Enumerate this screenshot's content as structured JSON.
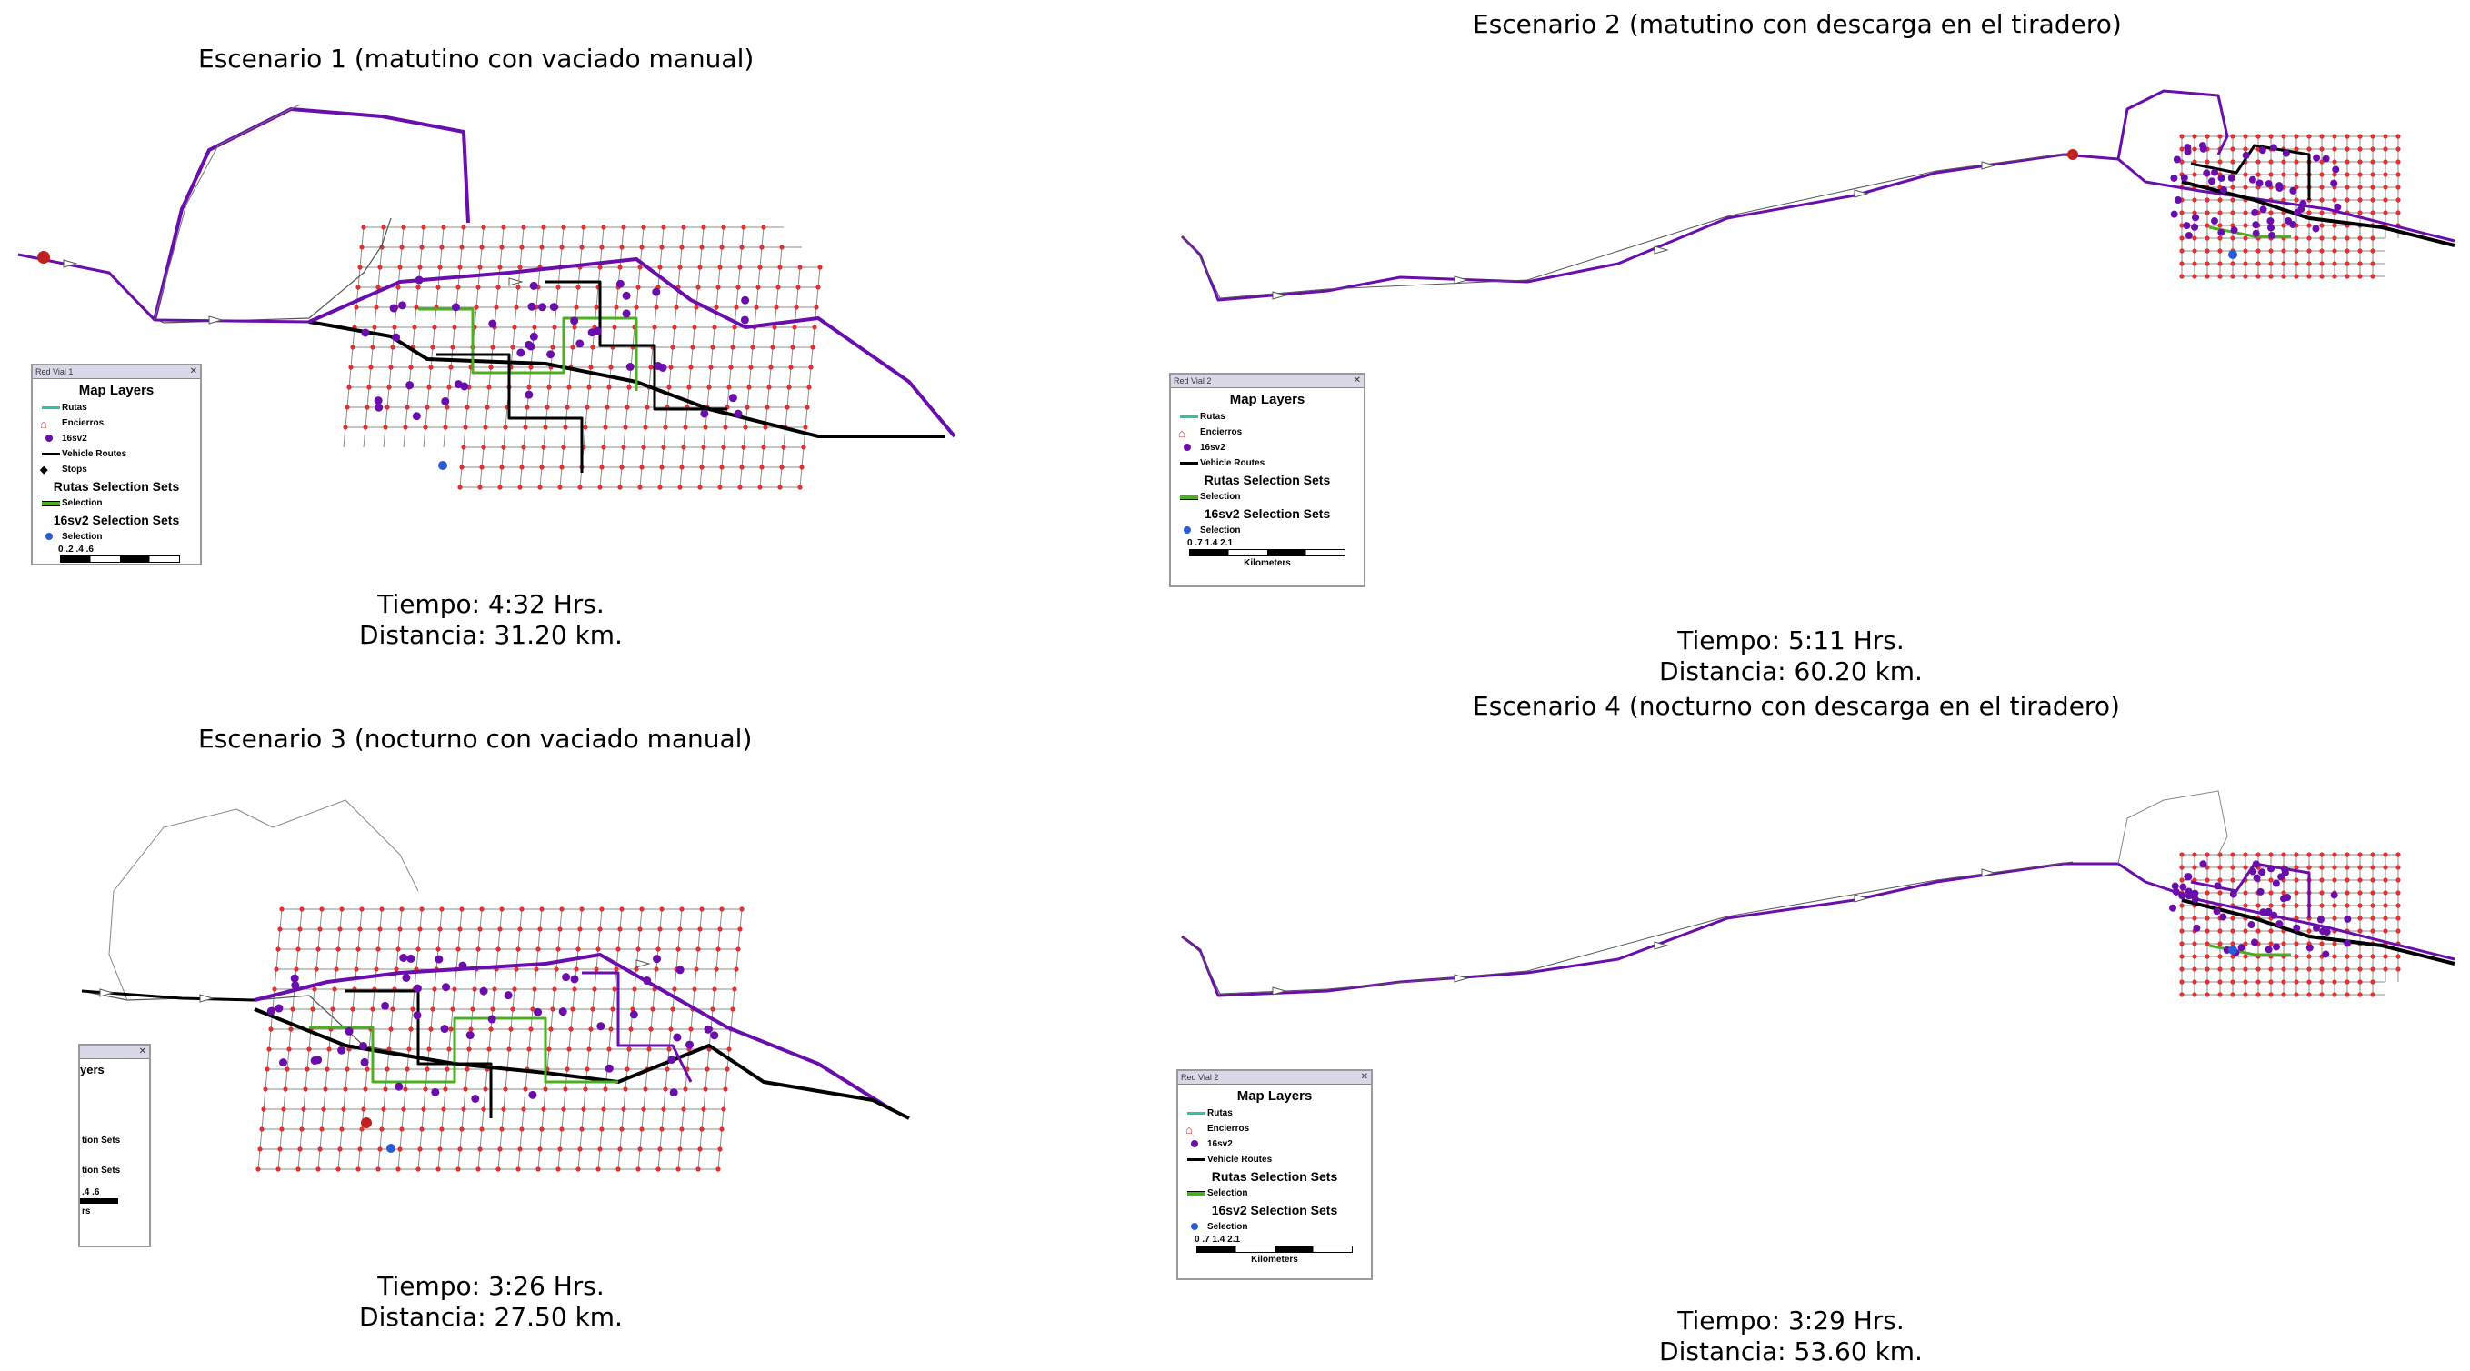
{
  "panels": [
    {
      "title": "Escenario 1 (matutino con vaciado manual)",
      "tiempo": "Tiempo: 4:32 Hrs.",
      "distancia": "Distancia: 31.20 km."
    },
    {
      "title": "Escenario 2 (matutino con descarga en el tiradero)",
      "tiempo": "Tiempo: 5:11 Hrs.",
      "distancia": "Distancia: 60.20 km."
    },
    {
      "title": "Escenario 3 (nocturno con vaciado manual)",
      "tiempo": "Tiempo: 3:26 Hrs.",
      "distancia": "Distancia: 27.50 km."
    },
    {
      "title": "Escenario 4 (nocturno con descarga en el tiradero)",
      "tiempo": "Tiempo: 3:29 Hrs.",
      "distancia": "Distancia: 53.60 km."
    }
  ],
  "legend": {
    "window_title_1": "Red Vial 1",
    "window_title_2": "Red Vial 2",
    "title": "Map Layers",
    "rutas": "Rutas",
    "encierros": "Encierros",
    "points": "16sv2",
    "vehicle_routes": "Vehicle Routes",
    "stops": "Stops",
    "rutas_sel": "Rutas Selection Sets",
    "selection": "Selection",
    "pts_sel": "16sv2 Selection Sets",
    "scale_1": "0 .2 .4 .6",
    "scale_2": "0 .7 1.4 2.1",
    "kilometers": "Kilometers",
    "partial_1": "yers",
    "partial_2": "tion Sets",
    "partial_3": "tion Sets",
    "partial_scale": ".4 .6",
    "partial_km": "rs"
  },
  "colors": {
    "route_purple": "#6a0dad",
    "vehicle_black": "#000000",
    "selection_green": "#4caf20",
    "rutas_teal": "#2ec4a0",
    "node_red": "#e03030",
    "selection_blue": "#2a5bd7",
    "grid_gray": "#8c8c8c"
  }
}
